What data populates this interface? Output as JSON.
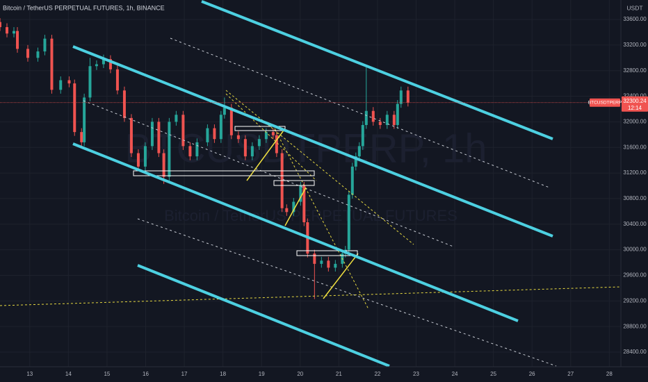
{
  "chart_data": {
    "type": "candlestick",
    "title": "Bitcoin / TetherUS PERPETUAL FUTURES, 1h, BINANCE",
    "y_axis_label": "USDT",
    "watermark": "BTCUSDTPERP, 1h",
    "watermark_subtitle": "Bitcoin / TetherUS PERPETUAL FUTURES",
    "symbol": "BTCUSDTPERP",
    "last_price": 32300.24,
    "countdown": "12:14",
    "up_color": "#26a69a",
    "down_color": "#ef5350",
    "last_price_color": "#f05350",
    "grid": true,
    "xlim": [
      12.23,
      28.3
    ],
    "ylim": [
      28172,
      33904
    ],
    "xticks": [
      13,
      14,
      15,
      16,
      17,
      18,
      19,
      20,
      21,
      22,
      23,
      24,
      25,
      26,
      27,
      28
    ],
    "yticks": [
      {
        "value": 28400,
        "label": "28400.00"
      },
      {
        "value": 28800,
        "label": "28800.00"
      },
      {
        "value": 29200,
        "label": "29200.00"
      },
      {
        "value": 29600,
        "label": "29600.00"
      },
      {
        "value": 30000,
        "label": "30000.00"
      },
      {
        "value": 30400,
        "label": "30400.00"
      },
      {
        "value": 30800,
        "label": "30800.00"
      },
      {
        "value": 31200,
        "label": "31200.00"
      },
      {
        "value": 31600,
        "label": "31600.00"
      },
      {
        "value": 32000,
        "label": "32000.00"
      },
      {
        "value": 32400,
        "label": "32400.00"
      },
      {
        "value": 32800,
        "label": "32800.00"
      },
      {
        "value": 33200,
        "label": "33200.00"
      },
      {
        "value": 33600,
        "label": "33600.00"
      }
    ],
    "x": [
      12.23,
      12.41,
      12.59,
      12.68,
      12.95,
      13.21,
      13.39,
      13.57,
      13.8,
      14.02,
      14.16,
      14.34,
      14.41,
      14.56,
      14.73,
      14.91,
      15.09,
      15.27,
      15.45,
      15.63,
      15.81,
      15.99,
      16.17,
      16.34,
      16.47,
      16.61,
      16.79,
      16.97,
      17.15,
      17.33,
      17.6,
      17.78,
      17.95,
      18.04,
      18.22,
      18.4,
      18.58,
      18.76,
      18.94,
      19.12,
      19.3,
      19.39,
      19.53,
      19.65,
      19.83,
      20.01,
      20.1,
      20.19,
      20.37,
      20.55,
      20.73,
      20.91,
      21.09,
      21.17,
      21.26,
      21.35,
      21.44,
      21.53,
      21.62,
      21.71,
      21.89,
      22.07,
      22.25,
      22.43,
      22.52,
      22.61,
      22.79
    ],
    "open": [
      33560,
      33480,
      33380,
      33420,
      33140,
      33000,
      33100,
      33300,
      32500,
      32650,
      32600,
      31840,
      31680,
      32380,
      32870,
      32900,
      32980,
      32820,
      32490,
      32060,
      31510,
      31300,
      31620,
      32000,
      31510,
      31140,
      32000,
      32110,
      31620,
      31460,
      31680,
      31900,
      31730,
      32110,
      32220,
      31790,
      31730,
      31460,
      31620,
      31730,
      31840,
      31790,
      31510,
      30650,
      30590,
      30750,
      31000,
      30430,
      29940,
      29780,
      29830,
      29720,
      29780,
      29940,
      30000,
      30860,
      31300,
      31460,
      31620,
      31950,
      32170,
      32000,
      31950,
      32110,
      31950,
      32280,
      32490
    ],
    "high": [
      33620,
      33540,
      33480,
      33480,
      33200,
      33160,
      33360,
      33360,
      32710,
      32710,
      32660,
      31900,
      32440,
      33000,
      32960,
      33050,
      33040,
      32880,
      32550,
      32120,
      31570,
      31680,
      32060,
      32060,
      31570,
      32060,
      32170,
      32170,
      31680,
      31740,
      31960,
      31960,
      32170,
      32380,
      32280,
      31850,
      31790,
      31680,
      31790,
      31900,
      31900,
      31850,
      31570,
      30710,
      30810,
      31060,
      31060,
      30490,
      30000,
      29890,
      29890,
      29840,
      30000,
      30060,
      30920,
      31360,
      31520,
      31680,
      32010,
      32850,
      32230,
      32060,
      32170,
      32170,
      32340,
      32550,
      32550
    ],
    "low": [
      33420,
      33320,
      33320,
      33080,
      32940,
      32940,
      33040,
      32440,
      32440,
      32540,
      31780,
      31620,
      31620,
      32320,
      32810,
      32840,
      32760,
      32430,
      32000,
      31450,
      31240,
      31240,
      31560,
      31450,
      31030,
      31080,
      31940,
      31560,
      31400,
      31400,
      31620,
      31670,
      31670,
      32050,
      31730,
      31670,
      31400,
      31400,
      31560,
      31670,
      31730,
      31450,
      30590,
      30530,
      30530,
      30690,
      30370,
      29880,
      29230,
      29720,
      29660,
      29660,
      29720,
      29880,
      29940,
      30800,
      31240,
      31400,
      31560,
      31890,
      31940,
      31890,
      31890,
      31890,
      31890,
      32220,
      32240
    ],
    "close": [
      33480,
      33380,
      33420,
      33140,
      33000,
      33100,
      33300,
      32500,
      32650,
      32600,
      31840,
      31680,
      32380,
      32870,
      32900,
      32980,
      32820,
      32490,
      32060,
      31510,
      31300,
      31620,
      32000,
      31510,
      31140,
      32000,
      32110,
      31620,
      31460,
      31680,
      31900,
      31730,
      32110,
      32220,
      31790,
      31730,
      31460,
      31620,
      31730,
      31840,
      31790,
      31510,
      30650,
      30590,
      30750,
      31000,
      30430,
      29940,
      29780,
      29830,
      29720,
      29780,
      29940,
      30000,
      30860,
      31300,
      31460,
      31620,
      31950,
      32170,
      32000,
      31950,
      32110,
      31950,
      32280,
      32490,
      32300
    ]
  }
}
